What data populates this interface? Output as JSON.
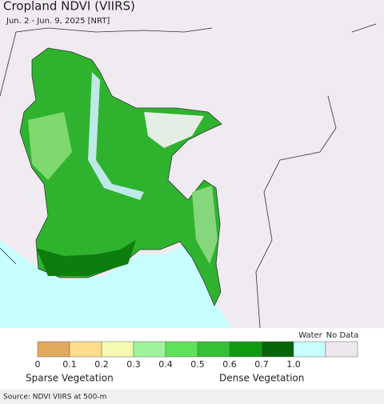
{
  "title": "Cropland NDVI (VIIRS)",
  "subtitle": "Jun. 2 - Jun. 9, 2025 [NRT]",
  "legend": {
    "colors": [
      "#e2a95f",
      "#fddc8c",
      "#f4fbb0",
      "#9ef49a",
      "#5ee25a",
      "#33c233",
      "#109c10",
      "#066506",
      "#c8ffff",
      "#ece8ee"
    ],
    "tick_labels": [
      "0",
      "0.1",
      "0.2",
      "0.3",
      "0.4",
      "0.5",
      "0.6",
      "0.7",
      "1.0"
    ],
    "water_label": "Water",
    "nodata_label": "No Data",
    "left_label": "Sparse Vegetation",
    "right_label": "Dense Vegetation"
  },
  "source": "Source: NDVI VIIRS at 500-m"
}
